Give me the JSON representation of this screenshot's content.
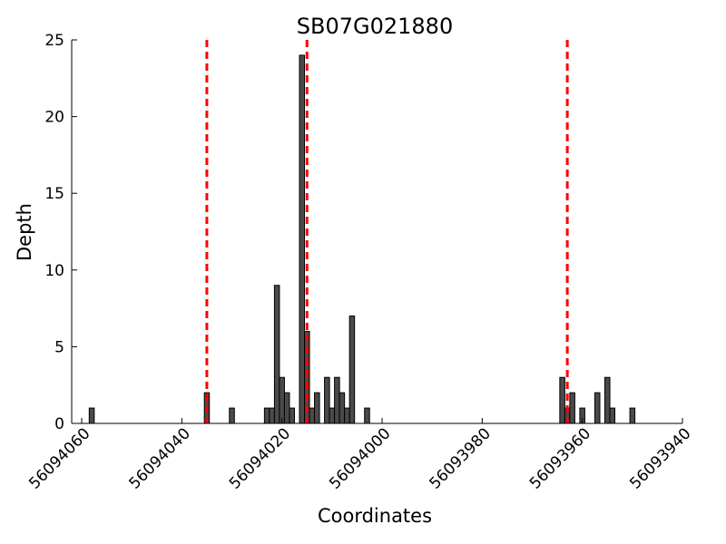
{
  "chart_data": {
    "type": "bar",
    "title": "SB07G021880",
    "xlabel": "Coordinates",
    "ylabel": "Depth",
    "x_reversed": true,
    "xlim": [
      56094062,
      56093940
    ],
    "ylim": [
      0,
      25
    ],
    "bar_width": 1,
    "x_ticks": [
      56094060,
      56094040,
      56094020,
      56094000,
      56093980,
      56093960,
      56093940
    ],
    "x_tick_labels": [
      "56094060",
      "56094040",
      "56094020",
      "56094000",
      "56093980",
      "56093960",
      "56093940"
    ],
    "y_ticks": [
      0,
      5,
      10,
      15,
      20,
      25
    ],
    "y_tick_labels": [
      "0",
      "5",
      "10",
      "15",
      "20",
      "25"
    ],
    "bar_color": "#4a4a4a",
    "vline_color": "#ff0000",
    "vlines": [
      56094035,
      56094015,
      56093963
    ],
    "bars": [
      {
        "x": 56094058,
        "depth": 1
      },
      {
        "x": 56094035,
        "depth": 2
      },
      {
        "x": 56094030,
        "depth": 1
      },
      {
        "x": 56094023,
        "depth": 1
      },
      {
        "x": 56094022,
        "depth": 1
      },
      {
        "x": 56094021,
        "depth": 9
      },
      {
        "x": 56094020,
        "depth": 3
      },
      {
        "x": 56094019,
        "depth": 2
      },
      {
        "x": 56094018,
        "depth": 1
      },
      {
        "x": 56094016,
        "depth": 24
      },
      {
        "x": 56094015,
        "depth": 6
      },
      {
        "x": 56094014,
        "depth": 1
      },
      {
        "x": 56094013,
        "depth": 2
      },
      {
        "x": 56094011,
        "depth": 3
      },
      {
        "x": 56094010,
        "depth": 1
      },
      {
        "x": 56094009,
        "depth": 3
      },
      {
        "x": 56094008,
        "depth": 2
      },
      {
        "x": 56094007,
        "depth": 1
      },
      {
        "x": 56094006,
        "depth": 7
      },
      {
        "x": 56094003,
        "depth": 1
      },
      {
        "x": 56093964,
        "depth": 3
      },
      {
        "x": 56093963,
        "depth": 1
      },
      {
        "x": 56093962,
        "depth": 2
      },
      {
        "x": 56093960,
        "depth": 1
      },
      {
        "x": 56093957,
        "depth": 2
      },
      {
        "x": 56093955,
        "depth": 3
      },
      {
        "x": 56093954,
        "depth": 1
      },
      {
        "x": 56093950,
        "depth": 1
      }
    ]
  }
}
